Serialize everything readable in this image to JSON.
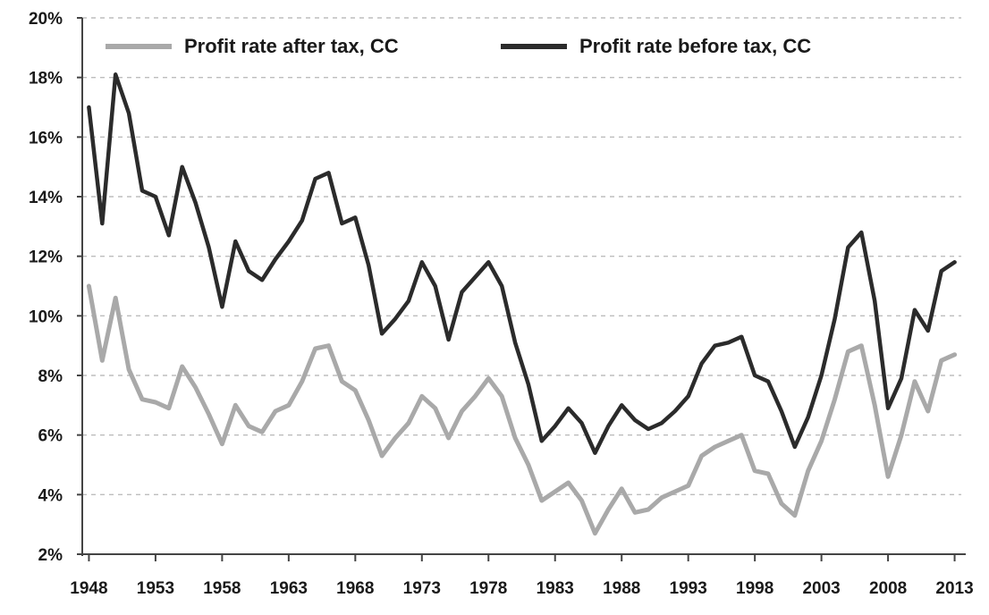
{
  "chart_data": {
    "type": "line",
    "title": "",
    "xlabel": "",
    "ylabel": "",
    "ylim": [
      2,
      20
    ],
    "xlim": [
      1947.5,
      2013.5
    ],
    "grid": "none",
    "legend": {
      "placement": "top"
    },
    "x_ticks": [
      1948,
      1953,
      1958,
      1963,
      1968,
      1973,
      1978,
      1983,
      1988,
      1993,
      1998,
      2003,
      2008,
      2013
    ],
    "x_tick_labels": [
      "1948",
      "1953",
      "1958",
      "1963",
      "1968",
      "1973",
      "1978",
      "1983",
      "1988",
      "1993",
      "1998",
      "2003",
      "2008",
      "2013"
    ],
    "y_ticks": [
      2,
      4,
      6,
      8,
      10,
      12,
      14,
      16,
      18,
      20
    ],
    "y_tick_labels": [
      "2%",
      "4%",
      "6%",
      "8%",
      "10%",
      "12%",
      "14%",
      "16%",
      "18%",
      "20%"
    ],
    "x": [
      1948,
      1949,
      1950,
      1951,
      1952,
      1953,
      1954,
      1955,
      1956,
      1957,
      1958,
      1959,
      1960,
      1961,
      1962,
      1963,
      1964,
      1965,
      1966,
      1967,
      1968,
      1969,
      1970,
      1971,
      1972,
      1973,
      1974,
      1975,
      1976,
      1977,
      1978,
      1979,
      1980,
      1981,
      1982,
      1983,
      1984,
      1985,
      1986,
      1987,
      1988,
      1989,
      1990,
      1991,
      1992,
      1993,
      1994,
      1995,
      1996,
      1997,
      1998,
      1999,
      2000,
      2001,
      2002,
      2003,
      2004,
      2005,
      2006,
      2007,
      2008,
      2009,
      2010,
      2011,
      2012,
      2013
    ],
    "series": [
      {
        "name": "Profit rate after tax, CC",
        "color": "#a9a9a9",
        "values": [
          11.0,
          8.5,
          10.6,
          8.2,
          7.2,
          7.1,
          6.9,
          8.3,
          7.6,
          6.7,
          5.7,
          7.0,
          6.3,
          6.1,
          6.8,
          7.0,
          7.8,
          8.9,
          9.0,
          7.8,
          7.5,
          6.5,
          5.3,
          5.9,
          6.4,
          7.3,
          6.9,
          5.9,
          6.8,
          7.3,
          7.9,
          7.3,
          5.9,
          5.0,
          3.8,
          4.1,
          4.4,
          3.8,
          2.7,
          3.5,
          4.2,
          3.4,
          3.5,
          3.9,
          4.1,
          4.3,
          5.3,
          5.6,
          5.8,
          6.0,
          4.8,
          4.7,
          3.7,
          3.3,
          4.8,
          5.8,
          7.2,
          8.8,
          9.0,
          7.0,
          4.6,
          6.0,
          7.8,
          6.8,
          8.5,
          8.7
        ]
      },
      {
        "name": "Profit rate before tax, CC",
        "color": "#2b2b2b",
        "values": [
          17.0,
          13.1,
          18.1,
          16.8,
          14.2,
          14.0,
          12.7,
          15.0,
          13.8,
          12.3,
          10.3,
          12.5,
          11.5,
          11.2,
          11.9,
          12.5,
          13.2,
          14.6,
          14.8,
          13.1,
          13.3,
          11.7,
          9.4,
          9.9,
          10.5,
          11.8,
          11.0,
          9.2,
          10.8,
          11.3,
          11.8,
          11.0,
          9.1,
          7.7,
          5.8,
          6.3,
          6.9,
          6.4,
          5.4,
          6.3,
          7.0,
          6.5,
          6.2,
          6.4,
          6.8,
          7.3,
          8.4,
          9.0,
          9.1,
          9.3,
          8.0,
          7.8,
          6.8,
          5.6,
          6.6,
          8.0,
          9.9,
          12.3,
          12.8,
          10.5,
          6.9,
          7.9,
          10.2,
          9.5,
          11.5,
          11.8
        ]
      }
    ]
  }
}
